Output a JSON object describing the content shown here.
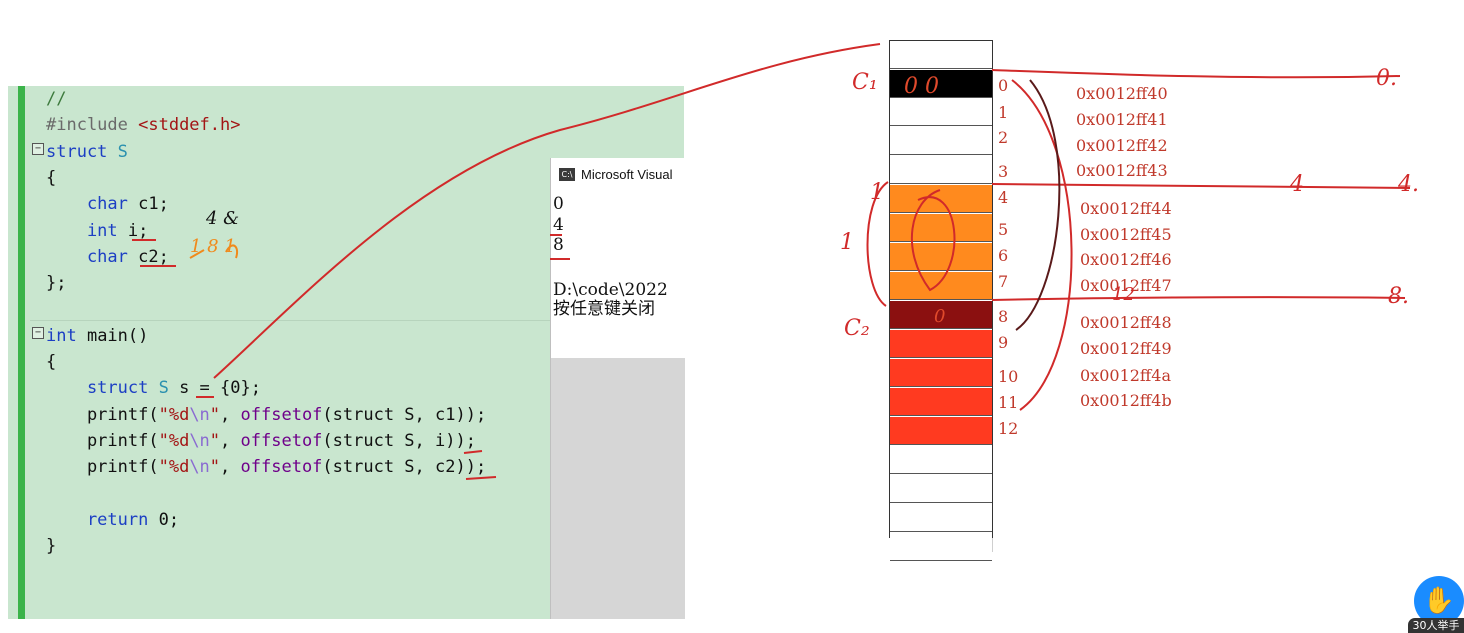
{
  "editor": {
    "lines": [
      {
        "segments": [
          {
            "t": "//",
            "c": "cm"
          }
        ]
      },
      {
        "segments": [
          {
            "t": "#include ",
            "c": "pp"
          },
          {
            "t": "<stddef.h>",
            "c": "str"
          }
        ]
      },
      {
        "segments": [
          {
            "t": "struct ",
            "c": "kw"
          },
          {
            "t": "S",
            "c": "ty"
          }
        ]
      },
      {
        "segments": [
          {
            "t": "{",
            "c": ""
          }
        ]
      },
      {
        "segments": [
          {
            "t": "    char ",
            "c": "kw"
          },
          {
            "t": "c1;",
            "c": ""
          }
        ]
      },
      {
        "segments": [
          {
            "t": "    int ",
            "c": "kw"
          },
          {
            "t": "i;",
            "c": ""
          }
        ]
      },
      {
        "segments": [
          {
            "t": "    char ",
            "c": "kw"
          },
          {
            "t": "c2;",
            "c": ""
          }
        ]
      },
      {
        "segments": [
          {
            "t": "};",
            "c": ""
          }
        ]
      },
      {
        "segments": []
      },
      {
        "segments": [
          {
            "t": "int ",
            "c": "kw"
          },
          {
            "t": "main()",
            "c": ""
          }
        ]
      },
      {
        "segments": [
          {
            "t": "{",
            "c": ""
          }
        ]
      },
      {
        "segments": [
          {
            "t": "    struct ",
            "c": "kw"
          },
          {
            "t": "S",
            "c": "ty"
          },
          {
            "t": " s = {0};",
            "c": ""
          }
        ]
      },
      {
        "segments": [
          {
            "t": "    printf(",
            "c": ""
          },
          {
            "t": "\"%d",
            "c": "str"
          },
          {
            "t": "\\n",
            "c": "esc"
          },
          {
            "t": "\"",
            "c": "str"
          },
          {
            "t": ", ",
            "c": ""
          },
          {
            "t": "offsetof",
            "c": "mac"
          },
          {
            "t": "(struct S, c1));",
            "c": ""
          }
        ]
      },
      {
        "segments": [
          {
            "t": "    printf(",
            "c": ""
          },
          {
            "t": "\"%d",
            "c": "str"
          },
          {
            "t": "\\n",
            "c": "esc"
          },
          {
            "t": "\"",
            "c": "str"
          },
          {
            "t": ", ",
            "c": ""
          },
          {
            "t": "offsetof",
            "c": "mac"
          },
          {
            "t": "(struct S, i));",
            "c": ""
          }
        ]
      },
      {
        "segments": [
          {
            "t": "    printf(",
            "c": ""
          },
          {
            "t": "\"%d",
            "c": "str"
          },
          {
            "t": "\\n",
            "c": "esc"
          },
          {
            "t": "\"",
            "c": "str"
          },
          {
            "t": ", ",
            "c": ""
          },
          {
            "t": "offsetof",
            "c": "mac"
          },
          {
            "t": "(struct S, c2));",
            "c": ""
          }
        ]
      },
      {
        "segments": []
      },
      {
        "segments": [
          {
            "t": "    return ",
            "c": "kw"
          },
          {
            "t": "0;",
            "c": ""
          }
        ]
      },
      {
        "segments": [
          {
            "t": "}",
            "c": ""
          }
        ]
      }
    ]
  },
  "console": {
    "title": "Microsoft Visual",
    "icon_text": "C:\\",
    "output": [
      "0",
      "4",
      "8",
      "",
      "D:\\code\\2022",
      "按任意键关闭"
    ]
  },
  "memory": {
    "cells": [
      {
        "color": "#ffffff"
      },
      {
        "color": "#000000"
      },
      {
        "color": "#ffffff"
      },
      {
        "color": "#ffffff"
      },
      {
        "color": "#ffffff"
      },
      {
        "color": "#ff8a1e"
      },
      {
        "color": "#ff8a1e"
      },
      {
        "color": "#ff8a1e"
      },
      {
        "color": "#ff8a1e"
      },
      {
        "color": "#8b1010"
      },
      {
        "color": "#ff3a20"
      },
      {
        "color": "#ff3a20"
      },
      {
        "color": "#ff3a20"
      },
      {
        "color": "#ff3a20"
      },
      {
        "color": "#ffffff"
      },
      {
        "color": "#ffffff"
      },
      {
        "color": "#ffffff"
      },
      {
        "color": "#ffffff"
      }
    ],
    "indices": [
      "0",
      "1",
      "2",
      "3",
      "4",
      "5",
      "6",
      "7",
      "8",
      "9",
      "10",
      "11",
      "12"
    ],
    "addresses": [
      "0x0012ff40",
      "0x0012ff41",
      "0x0012ff42",
      "0x0012ff43",
      "0x0012ff44",
      "0x0012ff45",
      "0x0012ff46",
      "0x0012ff47",
      "0x0012ff48",
      "0x0012ff49",
      "0x0012ff4a",
      "0x0012ff4b"
    ]
  },
  "annotations": {
    "c1_label": "C₁",
    "c2_label": "C₂",
    "c1_value": "0 0",
    "c2_value": "0",
    "one_left": "1",
    "bracket_one": "1",
    "offset_zero": "0.",
    "offset_four_a": "4",
    "offset_four_b": "4.",
    "offset_eight": "8.",
    "twelve_note": "12",
    "code_note_a": "4 &",
    "code_note_b": "1 8 1"
  },
  "hand_raise": {
    "icon": "raised-hand-icon",
    "count_label": "30人举手"
  }
}
